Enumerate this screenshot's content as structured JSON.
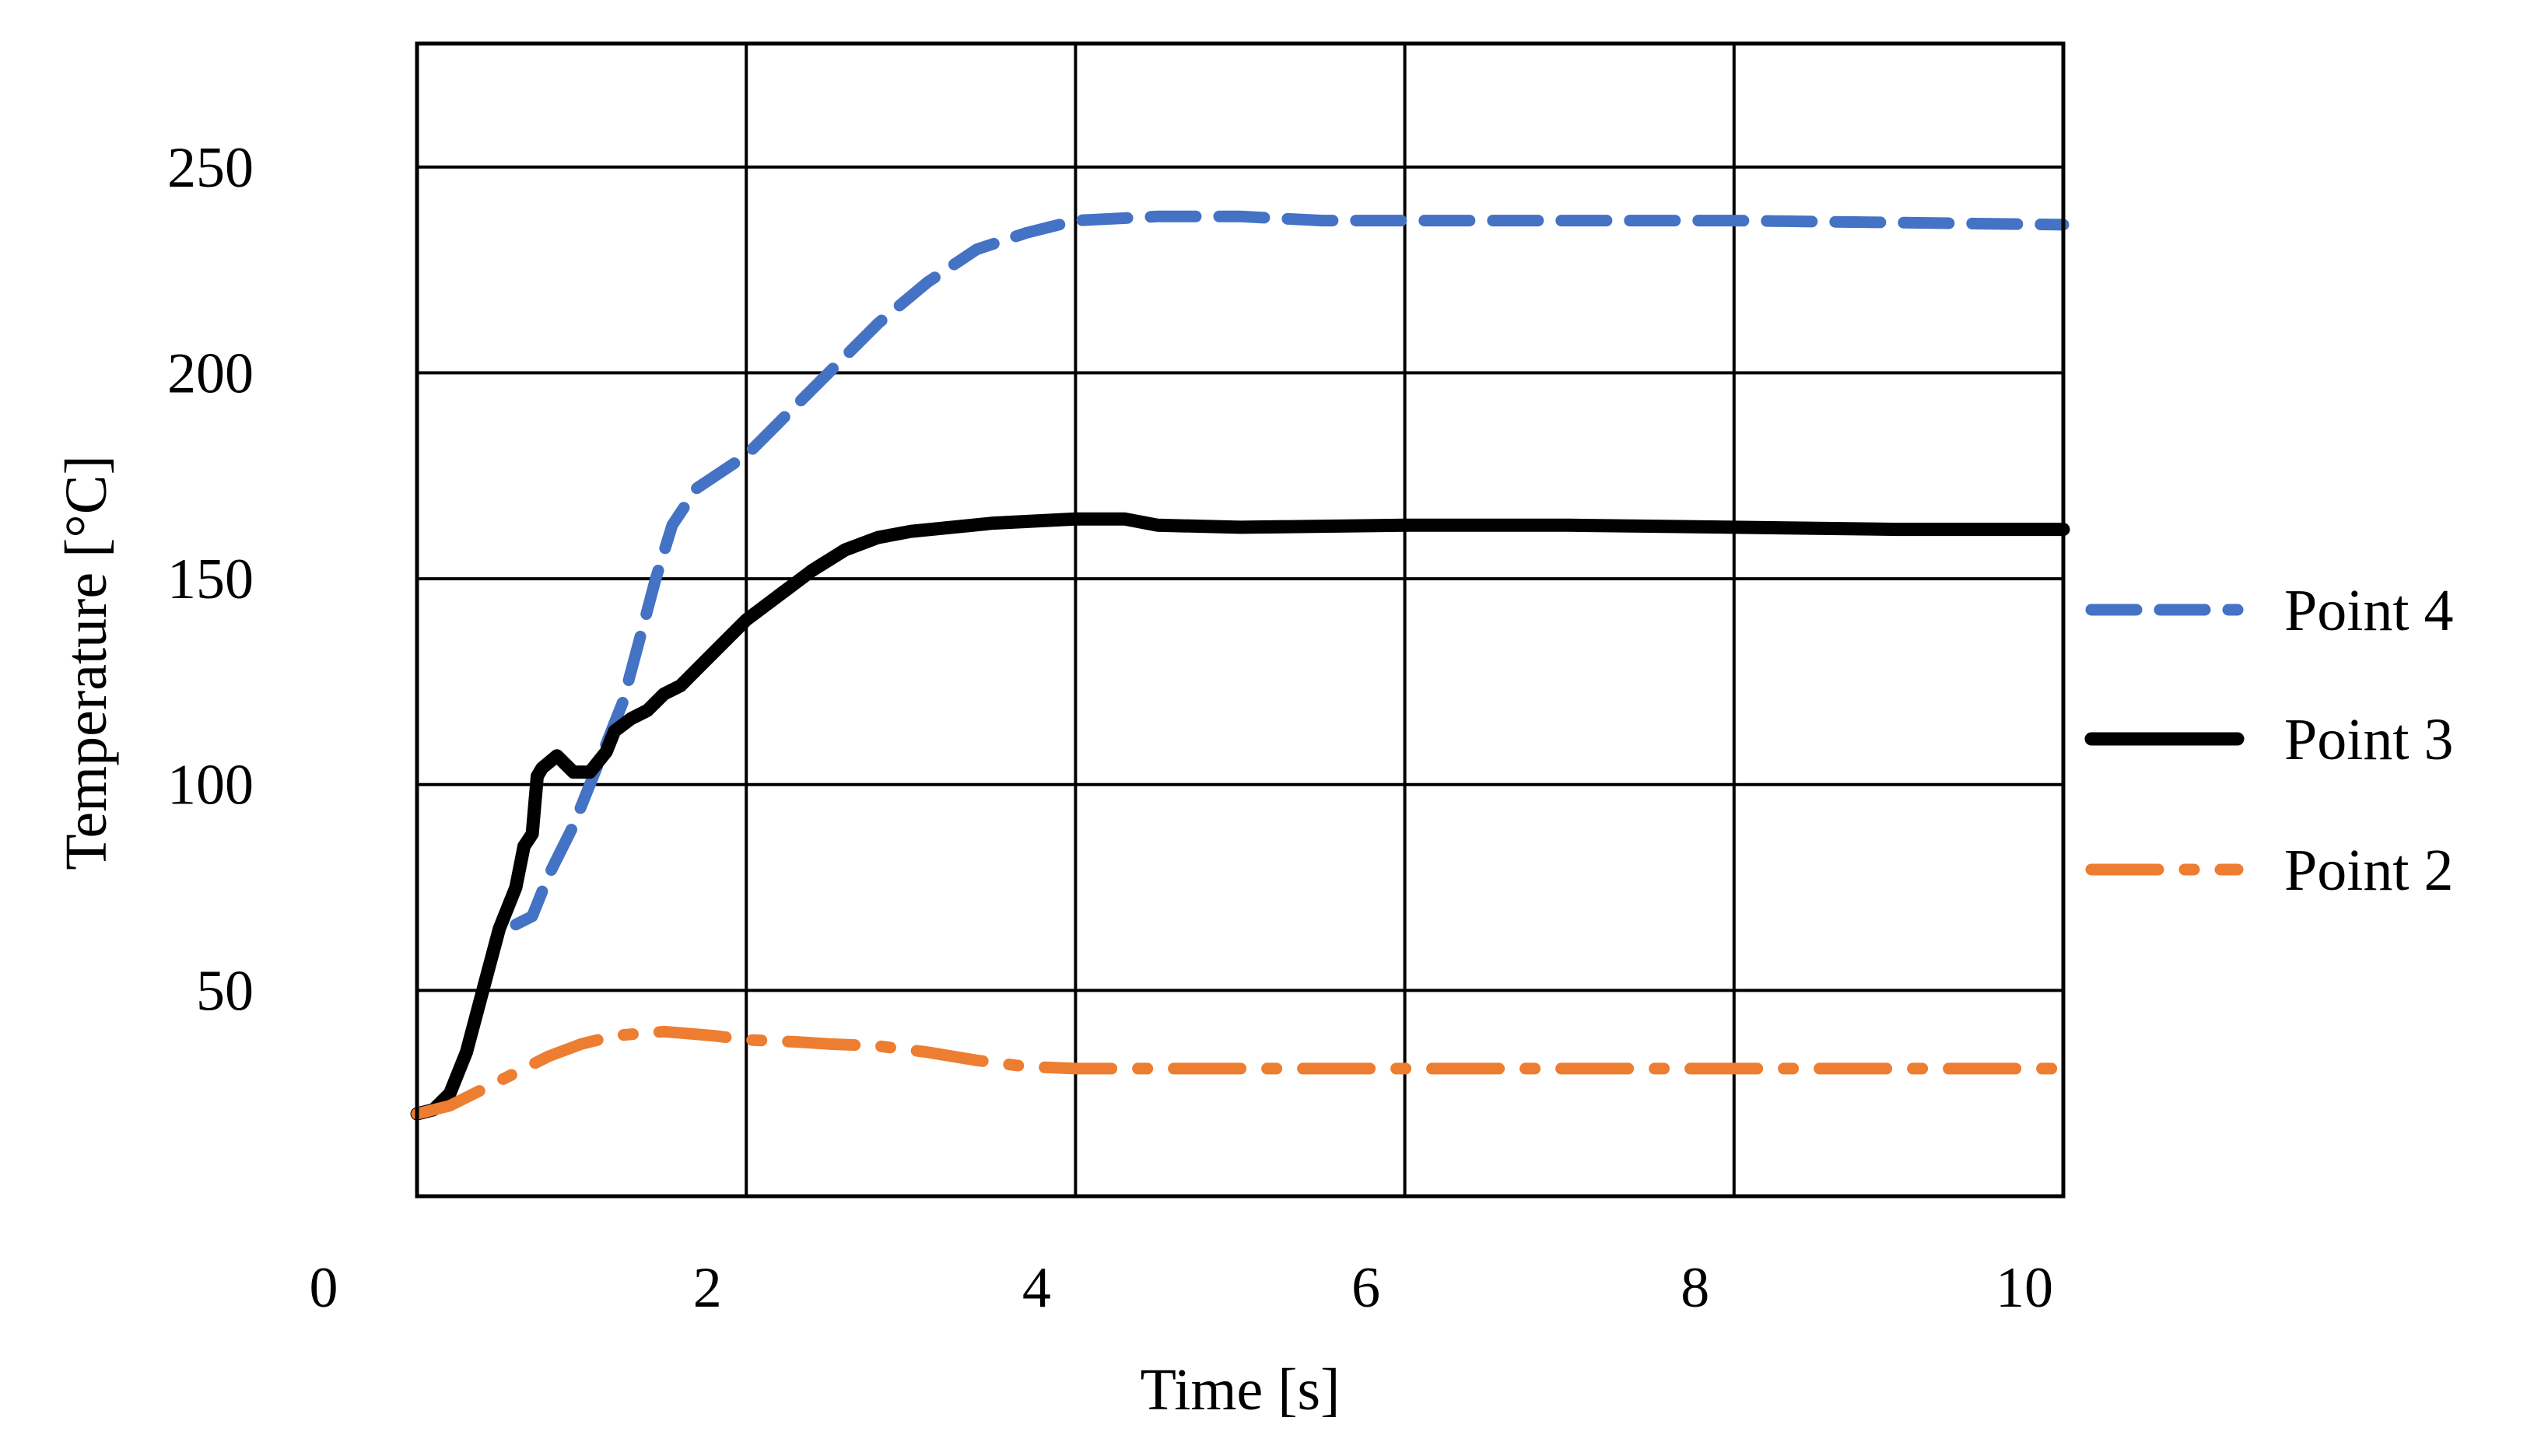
{
  "chart_data": {
    "type": "line",
    "title": "",
    "xlabel": "Time [s]",
    "ylabel": "Temperature [°C]",
    "xlim": [
      0,
      10
    ],
    "ylim": [
      0,
      280
    ],
    "grid": true,
    "legend_position": "right",
    "x_ticks": [
      0,
      2,
      4,
      6,
      8,
      10
    ],
    "x_tick_labels": [
      "0",
      "2",
      "4",
      "6",
      "8",
      "10"
    ],
    "y_ticks": [
      50,
      100,
      150,
      200,
      250
    ],
    "y_tick_labels": [
      "50",
      "100",
      "150",
      "200",
      "250"
    ],
    "series": [
      {
        "name": "Point 4",
        "color": "#4472C4",
        "style": "dashed",
        "points": [
          [
            0.6,
            66
          ],
          [
            0.7,
            68
          ],
          [
            0.8,
            78
          ],
          [
            0.95,
            90
          ],
          [
            1.1,
            105
          ],
          [
            1.25,
            120
          ],
          [
            1.35,
            135
          ],
          [
            1.45,
            150
          ],
          [
            1.55,
            163
          ],
          [
            1.7,
            172
          ],
          [
            2.0,
            180
          ],
          [
            2.2,
            188
          ],
          [
            2.5,
            200
          ],
          [
            2.8,
            212
          ],
          [
            3.1,
            222
          ],
          [
            3.4,
            230
          ],
          [
            3.7,
            234
          ],
          [
            4.0,
            237
          ],
          [
            4.5,
            238
          ],
          [
            5.0,
            238
          ],
          [
            5.5,
            237
          ],
          [
            6.0,
            237
          ],
          [
            7.0,
            237
          ],
          [
            8.0,
            237
          ],
          [
            9.0,
            236.5
          ],
          [
            10.0,
            236
          ]
        ]
      },
      {
        "name": "Point 3",
        "color": "#000000",
        "style": "solid",
        "points": [
          [
            0.0,
            20
          ],
          [
            0.1,
            21
          ],
          [
            0.2,
            25
          ],
          [
            0.3,
            35
          ],
          [
            0.4,
            50
          ],
          [
            0.5,
            65
          ],
          [
            0.6,
            75
          ],
          [
            0.65,
            85
          ],
          [
            0.7,
            88
          ],
          [
            0.73,
            102
          ],
          [
            0.76,
            104
          ],
          [
            0.85,
            107
          ],
          [
            0.95,
            103
          ],
          [
            1.05,
            103
          ],
          [
            1.15,
            108
          ],
          [
            1.2,
            113
          ],
          [
            1.3,
            116
          ],
          [
            1.4,
            118
          ],
          [
            1.5,
            122
          ],
          [
            1.6,
            124
          ],
          [
            1.8,
            132
          ],
          [
            2.0,
            140
          ],
          [
            2.2,
            146
          ],
          [
            2.4,
            152
          ],
          [
            2.6,
            157
          ],
          [
            2.8,
            160
          ],
          [
            3.0,
            161.5
          ],
          [
            3.5,
            163.5
          ],
          [
            4.0,
            164.5
          ],
          [
            4.3,
            164.5
          ],
          [
            4.5,
            163
          ],
          [
            5.0,
            162.5
          ],
          [
            6.0,
            163
          ],
          [
            7.0,
            163
          ],
          [
            8.0,
            162.5
          ],
          [
            9.0,
            162
          ],
          [
            10.0,
            162
          ]
        ]
      },
      {
        "name": "Point 2",
        "color": "#ED7D31",
        "style": "dashdot",
        "points": [
          [
            0.0,
            20
          ],
          [
            0.2,
            22
          ],
          [
            0.4,
            26
          ],
          [
            0.6,
            30
          ],
          [
            0.8,
            34
          ],
          [
            1.0,
            37
          ],
          [
            1.2,
            39
          ],
          [
            1.5,
            40
          ],
          [
            1.8,
            39
          ],
          [
            2.0,
            38
          ],
          [
            2.3,
            37.5
          ],
          [
            2.5,
            37
          ],
          [
            2.8,
            36.5
          ],
          [
            3.1,
            35
          ],
          [
            3.4,
            33
          ],
          [
            3.7,
            31.5
          ],
          [
            4.0,
            31
          ],
          [
            5.0,
            31
          ],
          [
            6.0,
            31
          ],
          [
            7.0,
            31
          ],
          [
            8.0,
            31
          ],
          [
            9.0,
            31
          ],
          [
            10.0,
            31
          ]
        ]
      }
    ]
  }
}
